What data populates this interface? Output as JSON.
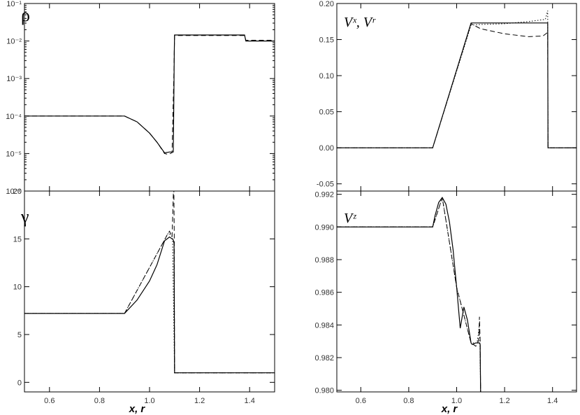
{
  "chart_data": [
    {
      "id": "rho",
      "type": "line",
      "label": "ρ",
      "yscale": "log",
      "xlim": [
        0.5,
        1.5
      ],
      "ylim": [
        1e-06,
        0.1
      ],
      "yticks": [
        -6,
        -5,
        -4,
        -3,
        -2,
        -1
      ],
      "ytick_labels": [
        "10⁻⁶",
        "10⁻⁵",
        "10⁻⁴",
        "10⁻³",
        "10⁻²",
        "10⁻¹"
      ],
      "series": [
        {
          "style": "solid",
          "x": [
            0.5,
            0.9,
            0.95,
            1.0,
            1.03,
            1.06,
            1.08,
            1.095,
            1.097,
            1.099,
            1.1,
            1.11,
            1.2,
            1.3,
            1.38,
            1.385,
            1.5
          ],
          "y": [
            0.0001,
            0.0001,
            7e-05,
            3.5e-05,
            2e-05,
            1.05e-05,
            1.1e-05,
            1.1e-05,
            0.0002,
            0.005,
            0.0145,
            0.0145,
            0.0145,
            0.0145,
            0.0145,
            0.01,
            0.01
          ]
        },
        {
          "style": "dashed",
          "x": [
            0.5,
            0.9,
            0.95,
            1.0,
            1.03,
            1.06,
            1.075,
            1.09,
            1.097,
            1.1,
            1.11,
            1.38,
            1.385,
            1.5
          ],
          "y": [
            0.0001,
            0.0001,
            7e-05,
            3.5e-05,
            2e-05,
            1e-05,
            9.5e-06,
            1.05e-05,
            0.001,
            0.014,
            0.014,
            0.014,
            0.0105,
            0.0105
          ]
        }
      ]
    },
    {
      "id": "vxvr",
      "type": "line",
      "label": "Vˣ, Vʳ",
      "yscale": "linear",
      "xlim": [
        0.5,
        1.5
      ],
      "ylim": [
        -0.06,
        0.2
      ],
      "yticks": [
        -0.05,
        0.0,
        0.05,
        0.1,
        0.15,
        0.2
      ],
      "ytick_labels": [
        "-0.05",
        "0.00",
        "0.05",
        "0.10",
        "0.15",
        "0.20"
      ],
      "series": [
        {
          "style": "solid",
          "x": [
            0.5,
            0.9,
            1.06,
            1.1,
            1.2,
            1.3,
            1.38,
            1.381,
            1.5
          ],
          "y": [
            0.0,
            0.0,
            0.173,
            0.173,
            0.173,
            0.173,
            0.173,
            0.0,
            0.0
          ]
        },
        {
          "style": "dashed",
          "x": [
            0.5,
            0.9,
            1.06,
            1.1,
            1.2,
            1.3,
            1.36,
            1.38,
            1.381,
            1.5
          ],
          "y": [
            0.0,
            0.0,
            0.172,
            0.165,
            0.158,
            0.154,
            0.155,
            0.16,
            0.0,
            0.0
          ]
        },
        {
          "style": "dotted",
          "x": [
            0.5,
            0.9,
            1.06,
            1.1,
            1.2,
            1.3,
            1.37,
            1.38,
            1.381,
            1.5
          ],
          "y": [
            0.0,
            0.0,
            0.17,
            0.171,
            0.172,
            0.175,
            0.178,
            0.19,
            0.0,
            0.0
          ]
        }
      ]
    },
    {
      "id": "gamma",
      "type": "line",
      "label": "γ",
      "yscale": "linear",
      "xlim": [
        0.5,
        1.5
      ],
      "ylim": [
        -1,
        20
      ],
      "yticks": [
        0,
        5,
        10,
        15,
        20
      ],
      "ytick_labels": [
        "0",
        "5",
        "10",
        "15",
        "20"
      ],
      "xticks": [
        0.6,
        0.8,
        1.0,
        1.2,
        1.4
      ],
      "xtick_labels": [
        "0.6",
        "0.8",
        "1.0",
        "1.2",
        "1.4"
      ],
      "series": [
        {
          "style": "solid",
          "x": [
            0.5,
            0.9,
            0.95,
            1.0,
            1.03,
            1.06,
            1.08,
            1.09,
            1.095,
            1.098,
            1.1,
            1.2,
            1.3,
            1.5
          ],
          "y": [
            7.2,
            7.2,
            8.6,
            10.6,
            12.3,
            14.8,
            15.2,
            15.0,
            14.9,
            14.5,
            1.0,
            1.0,
            1.0,
            1.0
          ]
        },
        {
          "style": "dashed",
          "x": [
            0.5,
            0.9,
            1.06,
            1.07,
            1.08,
            1.09,
            1.095,
            1.097,
            1.099,
            1.1,
            1.2,
            1.5
          ],
          "y": [
            7.2,
            7.2,
            14.9,
            15.4,
            15.8,
            15.2,
            19.5,
            21.0,
            15.0,
            1.0,
            1.0,
            1.0
          ]
        },
        {
          "style": "dotted",
          "x": [
            0.5,
            0.9,
            1.06,
            1.075,
            1.085,
            1.092,
            1.1,
            1.2,
            1.5
          ],
          "y": [
            7.2,
            7.2,
            14.9,
            15.6,
            15.4,
            15.2,
            1.0,
            1.0,
            1.0
          ]
        }
      ]
    },
    {
      "id": "vz",
      "type": "line",
      "label": "Vᶻ",
      "yscale": "linear",
      "xlim": [
        0.5,
        1.5
      ],
      "ylim": [
        0.9799,
        0.9922
      ],
      "yticks": [
        0.98,
        0.982,
        0.984,
        0.986,
        0.988,
        0.99,
        0.992
      ],
      "ytick_labels": [
        "0.980",
        "0.982",
        "0.984",
        "0.986",
        "0.988",
        "0.990",
        "0.992"
      ],
      "xticks": [
        0.6,
        0.8,
        1.0,
        1.2,
        1.4
      ],
      "xtick_labels": [
        "0.6",
        "0.8",
        "1.0",
        "1.2",
        "1.4"
      ],
      "series": [
        {
          "style": "solid",
          "x": [
            0.5,
            0.9,
            0.91,
            0.925,
            0.94,
            0.955,
            0.97,
            0.985,
            1.0,
            1.015,
            1.03,
            1.045,
            1.06,
            1.065,
            1.08,
            1.09,
            1.095,
            1.098,
            1.1
          ],
          "y": [
            0.99,
            0.99,
            0.9907,
            0.9915,
            0.9918,
            0.9914,
            0.9903,
            0.9886,
            0.9863,
            0.9838,
            0.9851,
            0.9843,
            0.9829,
            0.9828,
            0.9829,
            0.9829,
            0.9829,
            0.9828,
            0.9797
          ]
        },
        {
          "style": "dashed",
          "x": [
            0.5,
            0.9,
            0.94,
            1.0,
            1.06,
            1.08,
            1.09,
            1.093,
            1.095,
            1.098,
            1.1
          ],
          "y": [
            0.99,
            0.99,
            0.9918,
            0.9863,
            0.9829,
            0.9827,
            0.983,
            0.9834,
            0.9845,
            0.9831,
            0.9797
          ]
        },
        {
          "style": "dotted",
          "x": [
            0.5,
            0.9,
            0.94,
            1.0,
            1.06,
            1.085,
            1.09,
            1.093,
            1.097,
            1.1
          ],
          "y": [
            0.99,
            0.99,
            0.9918,
            0.9863,
            0.9829,
            0.9829,
            0.9834,
            0.9838,
            0.9829,
            0.9797
          ]
        }
      ]
    }
  ],
  "xlabel": "x, r"
}
